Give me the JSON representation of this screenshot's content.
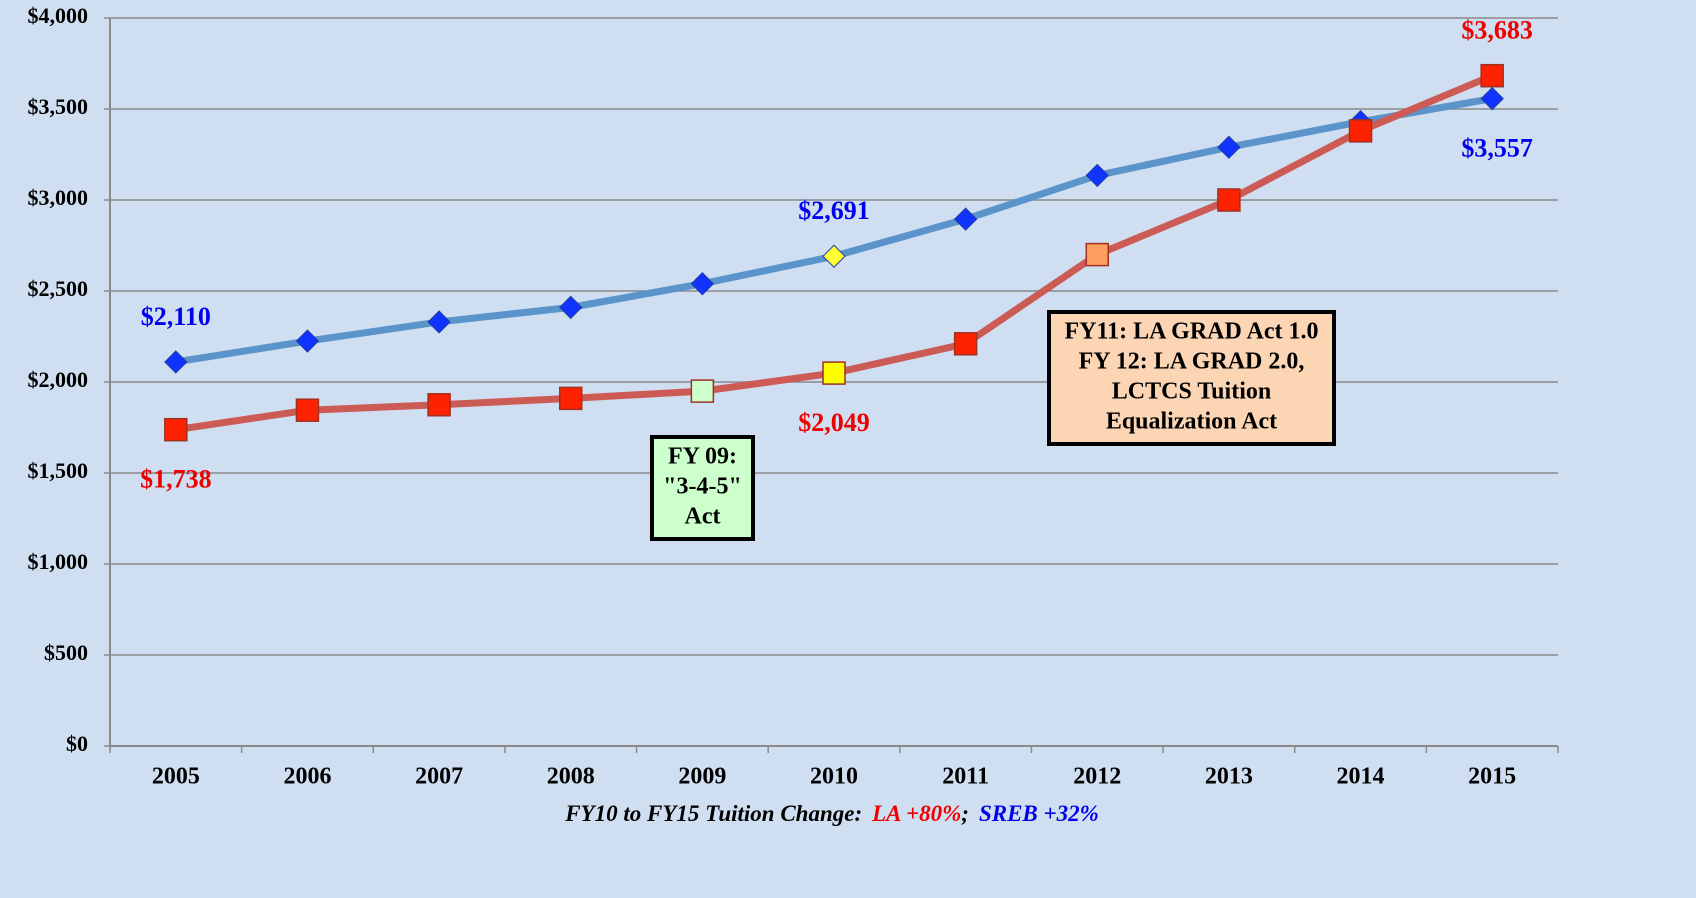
{
  "chart_data": {
    "type": "line",
    "categories": [
      "2005",
      "2006",
      "2007",
      "2008",
      "2009",
      "2010",
      "2011",
      "2012",
      "2013",
      "2014",
      "2015"
    ],
    "series": [
      {
        "color": "#5b93cb",
        "marker": "diamond",
        "marker_color": "#1033ff",
        "label_color": "#0000ee",
        "point_colors": [
          null,
          null,
          null,
          null,
          null,
          "#ffff33",
          null,
          null,
          null,
          null,
          null
        ],
        "values": [
          2110,
          2225,
          2330,
          2410,
          2540,
          2691,
          2895,
          3135,
          3290,
          3430,
          3557
        ],
        "value_labels": [
          "$2,110",
          null,
          null,
          null,
          null,
          "$2,691",
          null,
          null,
          null,
          null,
          "$3,557"
        ]
      },
      {
        "color": "#cd5b55",
        "marker": "square",
        "marker_color": "#ff2200",
        "label_color": "#ee0000",
        "point_colors": [
          null,
          null,
          null,
          null,
          "#ccffcc",
          "#ffff00",
          null,
          "#ffa060",
          null,
          null,
          null
        ],
        "values": [
          1738,
          1845,
          1875,
          1910,
          1950,
          2049,
          2210,
          2700,
          3000,
          3380,
          3683
        ],
        "value_labels": [
          "$1,738",
          null,
          null,
          null,
          null,
          "$2,049",
          null,
          null,
          null,
          null,
          "$3,683"
        ]
      }
    ],
    "ylim": [
      0,
      4000
    ],
    "yticks": [
      {
        "value": 0,
        "label": "$0"
      },
      {
        "value": 500,
        "label": "$500"
      },
      {
        "value": 1000,
        "label": "$1,000"
      },
      {
        "value": 1500,
        "label": "$1,500"
      },
      {
        "value": 2000,
        "label": "$2,000"
      },
      {
        "value": 2500,
        "label": "$2,500"
      },
      {
        "value": 3000,
        "label": "$3,000"
      },
      {
        "value": 3500,
        "label": "$3,500"
      },
      {
        "value": 4000,
        "label": "$4,000"
      }
    ],
    "grid": true,
    "annotations": [
      {
        "lines": [
          "FY 09:",
          "\"3-4-5\"",
          "Act"
        ],
        "fill": "#ccffcc"
      },
      {
        "lines": [
          "FY11: LA GRAD Act 1.0",
          "FY 12: LA GRAD 2.0,",
          "LCTCS Tuition",
          "Equalization Act"
        ],
        "fill": "#fcd5b5"
      }
    ],
    "footnote": [
      {
        "text": "FY10 to FY15 Tuition Change:",
        "color": "#000000"
      },
      {
        "text": "LA +80%",
        "color": "#ee0000"
      },
      {
        "text": ";",
        "color": "#000000"
      },
      {
        "text": "SREB +32%",
        "color": "#0000ee"
      }
    ]
  }
}
